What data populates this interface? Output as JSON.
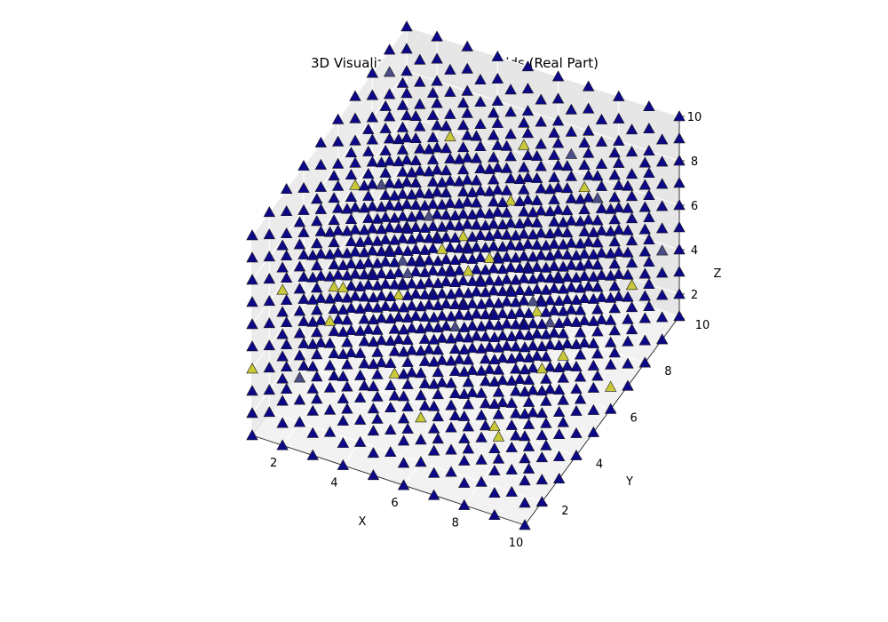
{
  "chart_data": {
    "type": "scatter",
    "projection": "3d",
    "title": "3D Visualization of Gauge Fields (Real Part)",
    "xlabel": "X",
    "ylabel": "Y",
    "zlabel": "Z",
    "xlim": [
      1,
      10
    ],
    "ylim": [
      1,
      10
    ],
    "zlim": [
      1,
      10
    ],
    "x_ticks": [
      2,
      4,
      6,
      8,
      10
    ],
    "y_ticks": [
      2,
      4,
      6,
      8,
      10
    ],
    "z_ticks": [
      2,
      4,
      6,
      8,
      10
    ],
    "grid": true,
    "marker": "triangle-up",
    "colormap": "plasma",
    "grid_points": {
      "x": [
        1,
        2,
        3,
        4,
        5,
        6,
        7,
        8,
        9,
        10
      ],
      "y": [
        1,
        2,
        3,
        4,
        5,
        6,
        7,
        8,
        9,
        10
      ],
      "z": [
        1,
        2,
        3,
        4,
        5,
        6,
        7,
        8,
        9,
        10
      ]
    },
    "base_color": "#0d0887",
    "highlight_color": "#c9c93a",
    "mid_color": "#4a4d86",
    "highlight_points": [
      [
        1,
        1,
        4
      ],
      [
        2,
        1,
        8
      ],
      [
        3,
        2,
        6
      ],
      [
        4,
        1,
        9
      ],
      [
        6,
        2,
        3
      ],
      [
        7,
        3,
        9
      ],
      [
        9,
        1,
        5
      ],
      [
        10,
        2,
        7
      ],
      [
        2,
        4,
        5
      ],
      [
        4,
        4,
        2
      ],
      [
        5,
        5,
        7
      ],
      [
        3,
        6,
        3
      ],
      [
        6,
        6,
        6
      ],
      [
        7,
        7,
        3
      ],
      [
        8,
        8,
        8
      ],
      [
        9,
        5,
        4
      ],
      [
        10,
        6,
        2
      ],
      [
        5,
        9,
        5
      ],
      [
        3,
        9,
        7
      ],
      [
        8,
        3,
        2
      ],
      [
        6,
        8,
        9
      ],
      [
        1,
        7,
        6
      ],
      [
        9,
        9,
        3
      ],
      [
        4,
        8,
        4
      ]
    ],
    "mid_points": [
      [
        2,
        2,
        3
      ],
      [
        5,
        3,
        8
      ],
      [
        8,
        5,
        6
      ],
      [
        1,
        9,
        9
      ],
      [
        6,
        4,
        5
      ],
      [
        10,
        9,
        5
      ],
      [
        3,
        5,
        9
      ],
      [
        7,
        9,
        8
      ],
      [
        9,
        7,
        9
      ],
      [
        4,
        6,
        7
      ],
      [
        2,
        8,
        2
      ],
      [
        8,
        6,
        4
      ]
    ]
  }
}
